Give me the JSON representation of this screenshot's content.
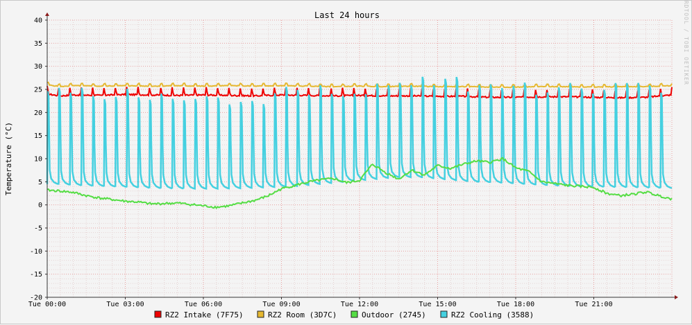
{
  "chart_data": {
    "type": "line",
    "title": "Last 24 hours",
    "ylabel": "Temperature (°C)",
    "xlabel": "",
    "watermark": "RRDTOOL / TOBI OETIKER",
    "x_range_hours": [
      0,
      24
    ],
    "ylim": [
      -20,
      40
    ],
    "y_ticks": [
      40,
      35,
      30,
      25,
      20,
      15,
      10,
      5,
      0,
      -5,
      -10,
      -15,
      -20
    ],
    "x_ticks": [
      {
        "h": 0,
        "label": "Tue 00:00"
      },
      {
        "h": 3,
        "label": "Tue 03:00"
      },
      {
        "h": 6,
        "label": "Tue 06:00"
      },
      {
        "h": 9,
        "label": "Tue 09:00"
      },
      {
        "h": 12,
        "label": "Tue 12:00"
      },
      {
        "h": 15,
        "label": "Tue 15:00"
      },
      {
        "h": 18,
        "label": "Tue 18:00"
      },
      {
        "h": 21,
        "label": "Tue 21:00"
      }
    ],
    "grid": true,
    "legend_position": "bottom",
    "series": [
      {
        "name": "RZ2 Intake (7F75)",
        "color": "#ee0000",
        "x": [
          0,
          0.5,
          1,
          2,
          3,
          4,
          5,
          6,
          7,
          8,
          9,
          10,
          11,
          12,
          13,
          14,
          15,
          16,
          17,
          18,
          19,
          20,
          21,
          22,
          23,
          24
        ],
        "y": [
          24,
          23.6,
          23.8,
          23.7,
          23.9,
          23.8,
          23.7,
          23.8,
          23.7,
          23.6,
          23.8,
          23.7,
          23.6,
          23.7,
          23.6,
          23.6,
          23.5,
          23.5,
          23.3,
          23.3,
          23.4,
          23.4,
          23.3,
          23.2,
          23.3,
          23.8
        ]
      },
      {
        "name": "RZ2 Room (3D7C)",
        "color": "#e6b830",
        "x": [
          0,
          0.5,
          1,
          2,
          3,
          4,
          5,
          6,
          7,
          8,
          9,
          10,
          11,
          12,
          13,
          14,
          15,
          16,
          17,
          18,
          19,
          20,
          21,
          22,
          23,
          24
        ],
        "y": [
          26,
          25.6,
          25.8,
          25.7,
          25.8,
          25.7,
          25.8,
          25.7,
          25.8,
          25.7,
          25.8,
          25.7,
          25.6,
          25.7,
          25.6,
          25.7,
          25.6,
          25.6,
          25.5,
          25.5,
          25.6,
          25.6,
          25.5,
          25.6,
          25.6,
          25.8
        ]
      },
      {
        "name": "Outdoor (2745)",
        "color": "#55dd44",
        "x": [
          0,
          0.5,
          1,
          1.5,
          2,
          3,
          3.5,
          4,
          5,
          6,
          6.5,
          7,
          8,
          8.5,
          9,
          10,
          10.5,
          11,
          11.5,
          12,
          12.5,
          13,
          13.5,
          14,
          14.5,
          15,
          15.5,
          16,
          16.5,
          17,
          17.5,
          18,
          18.5,
          19,
          20,
          21,
          21.5,
          22,
          22.5,
          23,
          23.5,
          24
        ],
        "y": [
          3.2,
          3.0,
          2.7,
          2.0,
          1.5,
          0.8,
          0.6,
          0.2,
          0.4,
          -0.2,
          -0.5,
          -0.2,
          1.0,
          2.0,
          3.5,
          4.9,
          5.4,
          5.7,
          4.8,
          5.3,
          8.8,
          7.0,
          5.6,
          7.5,
          6.5,
          8.5,
          7.9,
          8.8,
          9.5,
          9.2,
          10.0,
          8.0,
          7.2,
          5.0,
          4.2,
          3.8,
          2.5,
          2.0,
          2.3,
          2.8,
          2.0,
          1.3
        ]
      },
      {
        "name": "RZ2 Cooling (3588)",
        "color": "#45d0e0",
        "cycle": {
          "count": 55,
          "peak_approx": 25,
          "base_approx": 4
        },
        "x": [
          0,
          1,
          2,
          3,
          4,
          5,
          6,
          7,
          8,
          9,
          10,
          11,
          12,
          13,
          14,
          15,
          16,
          17,
          18,
          19,
          20,
          21,
          22,
          23,
          24
        ],
        "y_peak": [
          25,
          25,
          24,
          24,
          23,
          23,
          23,
          23,
          23,
          24,
          25,
          25,
          25,
          26,
          26,
          27,
          26,
          25,
          25,
          25,
          25,
          25,
          25,
          25,
          25
        ],
        "y_base": [
          4.5,
          4.2,
          4.0,
          3.8,
          3.6,
          3.5,
          3.5,
          3.6,
          3.8,
          4.0,
          4.5,
          5.0,
          5.5,
          6.0,
          6.0,
          5.5,
          5.0,
          4.8,
          4.5,
          4.2,
          4.0,
          3.9,
          3.8,
          3.7,
          3.6
        ]
      }
    ]
  }
}
